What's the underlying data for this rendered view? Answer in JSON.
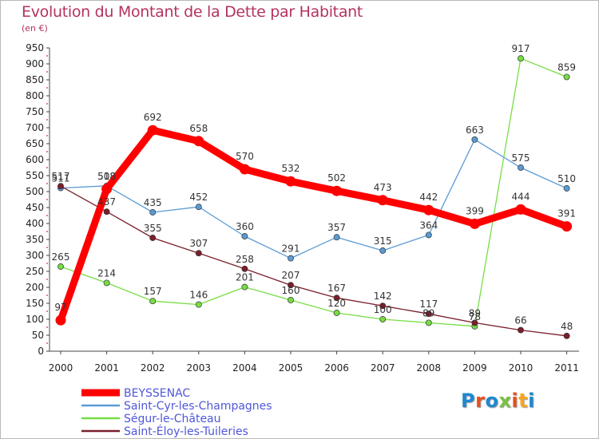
{
  "header": {
    "title": "Evolution du Montant de la Dette par Habitant",
    "subtitle": "(en €)"
  },
  "logo": {
    "text": "Proxiti",
    "colors": [
      "#1e88d0",
      "#e94f1c",
      "#1e88d0",
      "#7ac142",
      "#e94f1c",
      "#f5a623",
      "#1e88d0"
    ]
  },
  "chart_data": {
    "type": "line",
    "x": [
      "2000",
      "2001",
      "2002",
      "2003",
      "2004",
      "2005",
      "2006",
      "2007",
      "2008",
      "2009",
      "2010",
      "2011"
    ],
    "ylim": [
      0,
      950
    ],
    "yticks": [
      0,
      50,
      100,
      150,
      200,
      250,
      300,
      350,
      400,
      450,
      500,
      550,
      600,
      650,
      700,
      750,
      800,
      850,
      900,
      950
    ],
    "grid": false,
    "legend_position": "bottom-left",
    "series": [
      {
        "name": "BEYSSENAC",
        "color": "#ff0000",
        "values": [
          97,
          508,
          692,
          658,
          570,
          532,
          502,
          473,
          442,
          399,
          444,
          391
        ]
      },
      {
        "name": "Saint-Cyr-les-Champagnes",
        "color": "#5b9bd5",
        "values": [
          511,
          518,
          435,
          452,
          360,
          291,
          357,
          315,
          364,
          663,
          575,
          510
        ]
      },
      {
        "name": "Ségur-le-Château",
        "color": "#77dd44",
        "values": [
          265,
          214,
          157,
          146,
          201,
          160,
          120,
          100,
          89,
          78,
          917,
          859
        ]
      },
      {
        "name": "Saint-Éloy-les-Tuileries",
        "color": "#7a1f2b",
        "values": [
          517,
          437,
          355,
          307,
          258,
          207,
          167,
          142,
          117,
          89,
          66,
          48
        ]
      }
    ]
  }
}
